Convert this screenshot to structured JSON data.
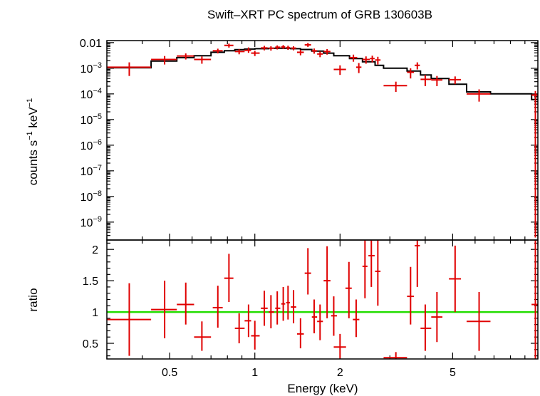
{
  "chart_data": {
    "type": "scatter",
    "title": "Swift–XRT PC spectrum of GRB 130603B",
    "xlabel": "Energy (keV)",
    "xscale": "log",
    "xlim": [
      0.3,
      10
    ],
    "x_tick_labels": [
      {
        "value": 0.5,
        "label": "0.5"
      },
      {
        "value": 1,
        "label": "1"
      },
      {
        "value": 2,
        "label": "2"
      },
      {
        "value": 5,
        "label": "5"
      }
    ],
    "colors": {
      "data": "#e00000",
      "model": "#000000",
      "unity": "#22dd00"
    },
    "panels": [
      {
        "name": "spectrum",
        "ylabel_base": "counts s",
        "ylabel_exp1": "−1",
        "ylabel_mid": " keV",
        "ylabel_exp2": "−1",
        "yscale": "log",
        "ylim": [
          2e-10,
          0.012
        ],
        "y_tick_labels": [
          {
            "value": 0.01,
            "base": "0.01",
            "exp": ""
          },
          {
            "value": 0.001,
            "base": "10",
            "exp": "−3"
          },
          {
            "value": 0.0001,
            "base": "10",
            "exp": "−4"
          },
          {
            "value": 1e-05,
            "base": "10",
            "exp": "−5"
          },
          {
            "value": 1e-06,
            "base": "10",
            "exp": "−6"
          },
          {
            "value": 1e-07,
            "base": "10",
            "exp": "−7"
          },
          {
            "value": 1e-08,
            "base": "10",
            "exp": "−8"
          },
          {
            "value": 1e-09,
            "base": "10",
            "exp": "−9"
          }
        ],
        "data": [
          {
            "x": 0.36,
            "xlo": 0.3,
            "xhi": 0.43,
            "y": 0.0011,
            "ylo": 0.0005,
            "yhi": 0.0017
          },
          {
            "x": 0.48,
            "xlo": 0.43,
            "xhi": 0.53,
            "y": 0.0022,
            "ylo": 0.0014,
            "yhi": 0.003
          },
          {
            "x": 0.57,
            "xlo": 0.53,
            "xhi": 0.61,
            "y": 0.003,
            "ylo": 0.0022,
            "yhi": 0.0038
          },
          {
            "x": 0.65,
            "xlo": 0.61,
            "xhi": 0.7,
            "y": 0.0022,
            "ylo": 0.0015,
            "yhi": 0.0029
          },
          {
            "x": 0.74,
            "xlo": 0.71,
            "xhi": 0.77,
            "y": 0.0048,
            "ylo": 0.0038,
            "yhi": 0.0058
          },
          {
            "x": 0.81,
            "xlo": 0.78,
            "xhi": 0.84,
            "y": 0.0078,
            "ylo": 0.0064,
            "yhi": 0.0092
          },
          {
            "x": 0.88,
            "xlo": 0.85,
            "xhi": 0.92,
            "y": 0.0045,
            "ylo": 0.0035,
            "yhi": 0.0055
          },
          {
            "x": 0.95,
            "xlo": 0.92,
            "xhi": 0.97,
            "y": 0.005,
            "ylo": 0.004,
            "yhi": 0.0065
          },
          {
            "x": 1.0,
            "xlo": 0.97,
            "xhi": 1.04,
            "y": 0.0039,
            "ylo": 0.003,
            "yhi": 0.0048
          },
          {
            "x": 1.08,
            "xlo": 1.05,
            "xhi": 1.11,
            "y": 0.0062,
            "ylo": 0.005,
            "yhi": 0.0075
          },
          {
            "x": 1.14,
            "xlo": 1.12,
            "xhi": 1.17,
            "y": 0.006,
            "ylo": 0.0049,
            "yhi": 0.0072
          },
          {
            "x": 1.2,
            "xlo": 1.18,
            "xhi": 1.23,
            "y": 0.0066,
            "ylo": 0.0054,
            "yhi": 0.0078
          },
          {
            "x": 1.26,
            "xlo": 1.24,
            "xhi": 1.28,
            "y": 0.0068,
            "ylo": 0.0056,
            "yhi": 0.008
          },
          {
            "x": 1.31,
            "xlo": 1.29,
            "xhi": 1.33,
            "y": 0.0064,
            "ylo": 0.0052,
            "yhi": 0.0076
          },
          {
            "x": 1.37,
            "xlo": 1.34,
            "xhi": 1.4,
            "y": 0.0061,
            "ylo": 0.005,
            "yhi": 0.0072
          },
          {
            "x": 1.45,
            "xlo": 1.41,
            "xhi": 1.49,
            "y": 0.0042,
            "ylo": 0.0032,
            "yhi": 0.0052
          },
          {
            "x": 1.54,
            "xlo": 1.5,
            "xhi": 1.58,
            "y": 0.0082,
            "ylo": 0.0068,
            "yhi": 0.0097
          },
          {
            "x": 1.62,
            "xlo": 1.59,
            "xhi": 1.66,
            "y": 0.0048,
            "ylo": 0.0037,
            "yhi": 0.0059
          },
          {
            "x": 1.7,
            "xlo": 1.66,
            "xhi": 1.74,
            "y": 0.0036,
            "ylo": 0.0027,
            "yhi": 0.0045
          },
          {
            "x": 1.8,
            "xlo": 1.75,
            "xhi": 1.85,
            "y": 0.0045,
            "ylo": 0.0034,
            "yhi": 0.0056
          },
          {
            "x": 2.0,
            "xlo": 1.9,
            "xhi": 2.1,
            "y": 0.0009,
            "ylo": 0.00055,
            "yhi": 0.0013
          },
          {
            "x": 2.23,
            "xlo": 2.16,
            "xhi": 2.3,
            "y": 0.0026,
            "ylo": 0.0018,
            "yhi": 0.0034
          },
          {
            "x": 2.33,
            "xlo": 2.28,
            "xhi": 2.38,
            "y": 0.0011,
            "ylo": 0.00065,
            "yhi": 0.0016
          },
          {
            "x": 2.47,
            "xlo": 2.4,
            "xhi": 2.55,
            "y": 0.0022,
            "ylo": 0.0015,
            "yhi": 0.0029
          },
          {
            "x": 2.6,
            "xlo": 2.55,
            "xhi": 2.65,
            "y": 0.0024,
            "ylo": 0.0017,
            "yhi": 0.0031
          },
          {
            "x": 2.72,
            "xlo": 2.66,
            "xhi": 2.78,
            "y": 0.0021,
            "ylo": 0.0014,
            "yhi": 0.0028
          },
          {
            "x": 3.15,
            "xlo": 2.85,
            "xhi": 3.45,
            "y": 0.00021,
            "ylo": 0.00012,
            "yhi": 0.0003
          },
          {
            "x": 3.55,
            "xlo": 3.45,
            "xhi": 3.65,
            "y": 0.0007,
            "ylo": 0.0004,
            "yhi": 0.001
          },
          {
            "x": 3.75,
            "xlo": 3.67,
            "xhi": 3.83,
            "y": 0.0013,
            "ylo": 0.0009,
            "yhi": 0.0017
          },
          {
            "x": 4.0,
            "xlo": 3.85,
            "xhi": 4.2,
            "y": 0.00037,
            "ylo": 0.0002,
            "yhi": 0.00055
          },
          {
            "x": 4.4,
            "xlo": 4.2,
            "xhi": 4.6,
            "y": 0.00035,
            "ylo": 0.0002,
            "yhi": 0.0005
          },
          {
            "x": 5.1,
            "xlo": 4.85,
            "xhi": 5.35,
            "y": 0.00036,
            "ylo": 0.00024,
            "yhi": 0.00048
          },
          {
            "x": 6.2,
            "xlo": 5.6,
            "xhi": 6.8,
            "y": 0.0001,
            "ylo": 5e-05,
            "yhi": 0.00015
          },
          {
            "x": 9.8,
            "xlo": 9.5,
            "xhi": 10.0,
            "y": 9e-05,
            "ylo": 2.5e-10,
            "yhi": 0.00013
          }
        ],
        "model": [
          {
            "x0": 0.3,
            "x1": 0.43,
            "y": 0.00105
          },
          {
            "x0": 0.43,
            "x1": 0.53,
            "y": 0.0019
          },
          {
            "x0": 0.53,
            "x1": 0.61,
            "y": 0.0026
          },
          {
            "x0": 0.61,
            "x1": 0.7,
            "y": 0.0031
          },
          {
            "x0": 0.7,
            "x1": 0.78,
            "y": 0.0042
          },
          {
            "x0": 0.78,
            "x1": 0.85,
            "y": 0.0048
          },
          {
            "x0": 0.85,
            "x1": 0.92,
            "y": 0.0053
          },
          {
            "x0": 0.92,
            "x1": 1.0,
            "y": 0.0056
          },
          {
            "x0": 1.0,
            "x1": 1.12,
            "y": 0.0058
          },
          {
            "x0": 1.12,
            "x1": 1.24,
            "y": 0.006
          },
          {
            "x0": 1.24,
            "x1": 1.34,
            "y": 0.006
          },
          {
            "x0": 1.34,
            "x1": 1.45,
            "y": 0.0058
          },
          {
            "x0": 1.45,
            "x1": 1.59,
            "y": 0.0054
          },
          {
            "x0": 1.59,
            "x1": 1.75,
            "y": 0.0047
          },
          {
            "x0": 1.75,
            "x1": 1.9,
            "y": 0.0039
          },
          {
            "x0": 1.9,
            "x1": 2.16,
            "y": 0.0031
          },
          {
            "x0": 2.16,
            "x1": 2.4,
            "y": 0.0024
          },
          {
            "x0": 2.4,
            "x1": 2.66,
            "y": 0.0018
          },
          {
            "x0": 2.66,
            "x1": 2.85,
            "y": 0.0013
          },
          {
            "x0": 2.85,
            "x1": 3.45,
            "y": 0.001
          },
          {
            "x0": 3.45,
            "x1": 3.85,
            "y": 0.00078
          },
          {
            "x0": 3.85,
            "x1": 4.2,
            "y": 0.00055
          },
          {
            "x0": 4.2,
            "x1": 4.85,
            "y": 0.0004
          },
          {
            "x0": 4.85,
            "x1": 5.6,
            "y": 0.00024
          },
          {
            "x0": 5.6,
            "x1": 6.8,
            "y": 0.00012
          },
          {
            "x0": 6.8,
            "x1": 9.5,
            "y": 0.0001
          },
          {
            "x0": 9.5,
            "x1": 10.0,
            "y": 6e-05
          }
        ]
      },
      {
        "name": "ratio",
        "ylabel": "ratio",
        "yscale": "linear",
        "ylim": [
          0.25,
          2.15
        ],
        "y_tick_labels": [
          {
            "value": 0.5,
            "label": "0.5"
          },
          {
            "value": 1,
            "label": "1"
          },
          {
            "value": 1.5,
            "label": "1.5"
          },
          {
            "value": 2,
            "label": "2"
          }
        ],
        "reference_line": 1,
        "data": [
          {
            "x": 0.36,
            "xlo": 0.3,
            "xhi": 0.43,
            "y": 0.88,
            "ylo": 0.3,
            "yhi": 1.46
          },
          {
            "x": 0.48,
            "xlo": 0.43,
            "xhi": 0.53,
            "y": 1.04,
            "ylo": 0.58,
            "yhi": 1.5
          },
          {
            "x": 0.57,
            "xlo": 0.53,
            "xhi": 0.61,
            "y": 1.12,
            "ylo": 0.8,
            "yhi": 1.47
          },
          {
            "x": 0.65,
            "xlo": 0.61,
            "xhi": 0.7,
            "y": 0.6,
            "ylo": 0.38,
            "yhi": 0.85
          },
          {
            "x": 0.74,
            "xlo": 0.71,
            "xhi": 0.77,
            "y": 1.07,
            "ylo": 0.75,
            "yhi": 1.42
          },
          {
            "x": 0.81,
            "xlo": 0.78,
            "xhi": 0.84,
            "y": 1.54,
            "ylo": 1.16,
            "yhi": 1.93
          },
          {
            "x": 0.88,
            "xlo": 0.85,
            "xhi": 0.92,
            "y": 0.74,
            "ylo": 0.5,
            "yhi": 0.98
          },
          {
            "x": 0.95,
            "xlo": 0.92,
            "xhi": 0.97,
            "y": 0.86,
            "ylo": 0.6,
            "yhi": 1.12
          },
          {
            "x": 1.0,
            "xlo": 0.97,
            "xhi": 1.04,
            "y": 0.62,
            "ylo": 0.4,
            "yhi": 0.86
          },
          {
            "x": 1.08,
            "xlo": 1.05,
            "xhi": 1.11,
            "y": 1.06,
            "ylo": 0.78,
            "yhi": 1.34
          },
          {
            "x": 1.14,
            "xlo": 1.12,
            "xhi": 1.17,
            "y": 1.0,
            "ylo": 0.74,
            "yhi": 1.27
          },
          {
            "x": 1.2,
            "xlo": 1.18,
            "xhi": 1.23,
            "y": 1.06,
            "ylo": 0.8,
            "yhi": 1.33
          },
          {
            "x": 1.26,
            "xlo": 1.24,
            "xhi": 1.28,
            "y": 1.13,
            "ylo": 0.86,
            "yhi": 1.4
          },
          {
            "x": 1.31,
            "xlo": 1.29,
            "xhi": 1.33,
            "y": 1.15,
            "ylo": 0.88,
            "yhi": 1.42
          },
          {
            "x": 1.37,
            "xlo": 1.34,
            "xhi": 1.4,
            "y": 1.08,
            "ylo": 0.82,
            "yhi": 1.35
          },
          {
            "x": 1.45,
            "xlo": 1.41,
            "xhi": 1.49,
            "y": 0.65,
            "ylo": 0.42,
            "yhi": 0.9
          },
          {
            "x": 1.54,
            "xlo": 1.5,
            "xhi": 1.58,
            "y": 1.62,
            "ylo": 1.28,
            "yhi": 2.02
          },
          {
            "x": 1.62,
            "xlo": 1.59,
            "xhi": 1.66,
            "y": 0.92,
            "ylo": 0.66,
            "yhi": 1.2
          },
          {
            "x": 1.7,
            "xlo": 1.66,
            "xhi": 1.74,
            "y": 0.85,
            "ylo": 0.55,
            "yhi": 1.12
          },
          {
            "x": 1.8,
            "xlo": 1.75,
            "xhi": 1.85,
            "y": 1.5,
            "ylo": 0.9,
            "yhi": 2.05
          },
          {
            "x": 1.9,
            "xlo": 1.86,
            "xhi": 1.95,
            "y": 0.94,
            "ylo": 0.62,
            "yhi": 1.25
          },
          {
            "x": 2.0,
            "xlo": 1.9,
            "xhi": 2.1,
            "y": 0.44,
            "ylo": 0.25,
            "yhi": 0.65
          },
          {
            "x": 2.15,
            "xlo": 2.09,
            "xhi": 2.2,
            "y": 1.38,
            "ylo": 0.9,
            "yhi": 1.8
          },
          {
            "x": 2.28,
            "xlo": 2.22,
            "xhi": 2.34,
            "y": 0.88,
            "ylo": 0.6,
            "yhi": 1.2
          },
          {
            "x": 2.45,
            "xlo": 2.4,
            "xhi": 2.5,
            "y": 1.73,
            "ylo": 1.22,
            "yhi": 2.2
          },
          {
            "x": 2.58,
            "xlo": 2.52,
            "xhi": 2.65,
            "y": 1.9,
            "ylo": 1.4,
            "yhi": 2.2
          },
          {
            "x": 2.72,
            "xlo": 2.66,
            "xhi": 2.78,
            "y": 1.65,
            "ylo": 1.1,
            "yhi": 2.2
          },
          {
            "x": 3.15,
            "xlo": 2.85,
            "xhi": 3.45,
            "y": 0.27,
            "ylo": 0.25,
            "yhi": 0.36
          },
          {
            "x": 3.55,
            "xlo": 3.45,
            "xhi": 3.65,
            "y": 1.25,
            "ylo": 0.8,
            "yhi": 1.72
          },
          {
            "x": 3.75,
            "xlo": 3.67,
            "xhi": 3.83,
            "y": 2.06,
            "ylo": 1.4,
            "yhi": 2.2
          },
          {
            "x": 4.0,
            "xlo": 3.85,
            "xhi": 4.2,
            "y": 0.74,
            "ylo": 0.38,
            "yhi": 1.12
          },
          {
            "x": 4.4,
            "xlo": 4.2,
            "xhi": 4.6,
            "y": 0.92,
            "ylo": 0.52,
            "yhi": 1.32
          },
          {
            "x": 5.1,
            "xlo": 4.85,
            "xhi": 5.35,
            "y": 1.53,
            "ylo": 1.0,
            "yhi": 2.06
          },
          {
            "x": 6.2,
            "xlo": 5.6,
            "xhi": 6.8,
            "y": 0.85,
            "ylo": 0.38,
            "yhi": 1.32
          },
          {
            "x": 9.8,
            "xlo": 9.5,
            "xhi": 10.0,
            "y": 1.12,
            "ylo": 0.25,
            "yhi": 2.2
          }
        ]
      }
    ]
  }
}
